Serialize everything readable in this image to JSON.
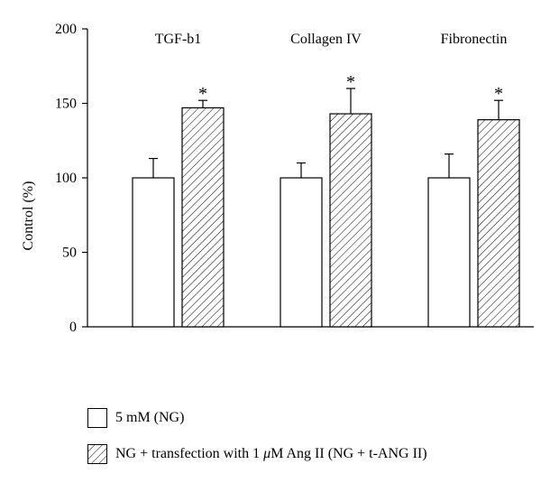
{
  "chart_data": {
    "type": "bar",
    "categories": [
      "TGF-b1",
      "Collagen IV",
      "Fibronectin"
    ],
    "ylabel": "Control (%)",
    "ylim": [
      0,
      200
    ],
    "yticks": [
      "0",
      "50",
      "100",
      "150",
      "200"
    ],
    "series": [
      {
        "name": "5 mM (NG)",
        "values": [
          100,
          100,
          100
        ],
        "errors": [
          13,
          10,
          16
        ],
        "fill": "#ffffff",
        "pattern": "none"
      },
      {
        "name": "NG + transfection with 1 μM Ang II (NG + t-ANG II)",
        "values": [
          147,
          143,
          139
        ],
        "errors": [
          5,
          17,
          13
        ],
        "significance": [
          "*",
          "*",
          "*"
        ],
        "fill": "#ffffff",
        "pattern": "diagonal-hatch"
      }
    ],
    "legend_position": "bottom-left",
    "grid": false,
    "colors": {
      "stroke": "#000000",
      "background": "#ffffff"
    }
  },
  "legend": {
    "item1": "5 mM (NG)",
    "item2_pre": "NG + transfection with 1 ",
    "item2_mu": "μ",
    "item2_post": "M Ang II (NG + t-ANG II)"
  }
}
